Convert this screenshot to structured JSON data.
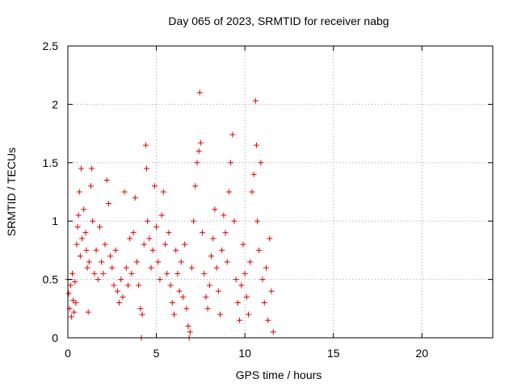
{
  "chart_data": {
    "type": "scatter",
    "title": "Day 065 of 2023, SRMTID for receiver nabg",
    "xlabel": "GPS time / hours",
    "ylabel": "SRMTID / TECUs",
    "xlim": [
      0,
      24
    ],
    "ylim": [
      0,
      2.5
    ],
    "x_ticks": [
      0,
      5,
      10,
      15,
      20
    ],
    "x_tick_labels": [
      "0",
      "5",
      "10",
      "15",
      "20"
    ],
    "y_ticks": [
      0,
      0.5,
      1,
      1.5,
      2,
      2.5
    ],
    "y_tick_labels": [
      "0",
      "0.5",
      "1",
      "1.5",
      "2",
      "2.5"
    ],
    "grid": true,
    "marker": "plus",
    "color": "#e00000",
    "series": [
      {
        "points": [
          [
            0.0,
            0.5
          ],
          [
            0.05,
            0.38
          ],
          [
            0.1,
            0.25
          ],
          [
            0.15,
            0.45
          ],
          [
            0.2,
            0.18
          ],
          [
            0.25,
            0.55
          ],
          [
            0.3,
            0.32
          ],
          [
            0.35,
            0.22
          ],
          [
            0.4,
            0.48
          ],
          [
            0.45,
            0.3
          ],
          [
            0.5,
            0.8
          ],
          [
            0.55,
            0.95
          ],
          [
            0.6,
            1.05
          ],
          [
            0.65,
            1.25
          ],
          [
            0.7,
            0.7
          ],
          [
            0.75,
            1.45
          ],
          [
            0.8,
            0.85
          ],
          [
            0.9,
            1.1
          ],
          [
            1.0,
            0.9
          ],
          [
            1.05,
            0.75
          ],
          [
            1.1,
            0.6
          ],
          [
            1.15,
            0.22
          ],
          [
            1.2,
            0.65
          ],
          [
            1.3,
            1.3
          ],
          [
            1.35,
            1.45
          ],
          [
            1.4,
            1.0
          ],
          [
            1.5,
            0.55
          ],
          [
            1.6,
            0.75
          ],
          [
            1.7,
            0.5
          ],
          [
            1.8,
            0.95
          ],
          [
            1.9,
            0.65
          ],
          [
            2.0,
            0.55
          ],
          [
            2.1,
            0.8
          ],
          [
            2.2,
            1.35
          ],
          [
            2.3,
            1.15
          ],
          [
            2.4,
            0.7
          ],
          [
            2.5,
            0.6
          ],
          [
            2.6,
            0.45
          ],
          [
            2.7,
            0.75
          ],
          [
            2.8,
            0.4
          ],
          [
            2.9,
            0.3
          ],
          [
            3.0,
            0.5
          ],
          [
            3.1,
            0.35
          ],
          [
            3.2,
            1.25
          ],
          [
            3.3,
            0.6
          ],
          [
            3.4,
            0.45
          ],
          [
            3.5,
            0.85
          ],
          [
            3.6,
            0.55
          ],
          [
            3.7,
            0.9
          ],
          [
            3.8,
            1.2
          ],
          [
            3.9,
            0.65
          ],
          [
            4.0,
            0.45
          ],
          [
            4.1,
            0.25
          ],
          [
            4.15,
            0.0
          ],
          [
            4.2,
            0.2
          ],
          [
            4.3,
            0.8
          ],
          [
            4.4,
            1.65
          ],
          [
            4.45,
            1.45
          ],
          [
            4.5,
            1.0
          ],
          [
            4.6,
            0.85
          ],
          [
            4.7,
            0.6
          ],
          [
            4.8,
            0.75
          ],
          [
            4.9,
            1.3
          ],
          [
            5.0,
            0.95
          ],
          [
            5.1,
            0.65
          ],
          [
            5.2,
            0.5
          ],
          [
            5.3,
            1.05
          ],
          [
            5.4,
            1.25
          ],
          [
            5.5,
            0.8
          ],
          [
            5.6,
            0.55
          ],
          [
            5.7,
            0.9
          ],
          [
            5.8,
            0.45
          ],
          [
            5.9,
            0.3
          ],
          [
            6.0,
            0.2
          ],
          [
            6.1,
            0.75
          ],
          [
            6.2,
            0.55
          ],
          [
            6.3,
            0.4
          ],
          [
            6.4,
            0.65
          ],
          [
            6.5,
            0.35
          ],
          [
            6.6,
            0.8
          ],
          [
            6.7,
            0.25
          ],
          [
            6.8,
            0.1
          ],
          [
            6.85,
            0.0
          ],
          [
            6.9,
            0.05
          ],
          [
            7.0,
            0.6
          ],
          [
            7.1,
            1.0
          ],
          [
            7.2,
            1.3
          ],
          [
            7.3,
            1.5
          ],
          [
            7.4,
            1.6
          ],
          [
            7.45,
            2.1
          ],
          [
            7.5,
            1.67
          ],
          [
            7.6,
            0.9
          ],
          [
            7.7,
            0.55
          ],
          [
            7.8,
            0.35
          ],
          [
            7.9,
            0.25
          ],
          [
            8.0,
            0.45
          ],
          [
            8.1,
            0.7
          ],
          [
            8.2,
            0.85
          ],
          [
            8.3,
            1.1
          ],
          [
            8.4,
            0.6
          ],
          [
            8.5,
            0.4
          ],
          [
            8.6,
            0.2
          ],
          [
            8.7,
            0.75
          ],
          [
            8.8,
            1.05
          ],
          [
            8.9,
            0.9
          ],
          [
            9.0,
            0.65
          ],
          [
            9.1,
            1.25
          ],
          [
            9.2,
            1.5
          ],
          [
            9.3,
            1.74
          ],
          [
            9.4,
            1.0
          ],
          [
            9.5,
            0.5
          ],
          [
            9.6,
            0.3
          ],
          [
            9.7,
            0.15
          ],
          [
            9.8,
            0.45
          ],
          [
            9.9,
            0.8
          ],
          [
            10.0,
            0.55
          ],
          [
            10.1,
            0.35
          ],
          [
            10.2,
            0.2
          ],
          [
            10.3,
            0.65
          ],
          [
            10.4,
            1.25
          ],
          [
            10.5,
            1.4
          ],
          [
            10.6,
            2.03
          ],
          [
            10.65,
            1.65
          ],
          [
            10.7,
            1.0
          ],
          [
            10.8,
            0.75
          ],
          [
            10.9,
            1.5
          ],
          [
            11.0,
            0.5
          ],
          [
            11.1,
            0.3
          ],
          [
            11.2,
            0.6
          ],
          [
            11.3,
            0.15
          ],
          [
            11.4,
            0.85
          ],
          [
            11.5,
            0.4
          ],
          [
            11.6,
            0.05
          ]
        ]
      }
    ]
  }
}
